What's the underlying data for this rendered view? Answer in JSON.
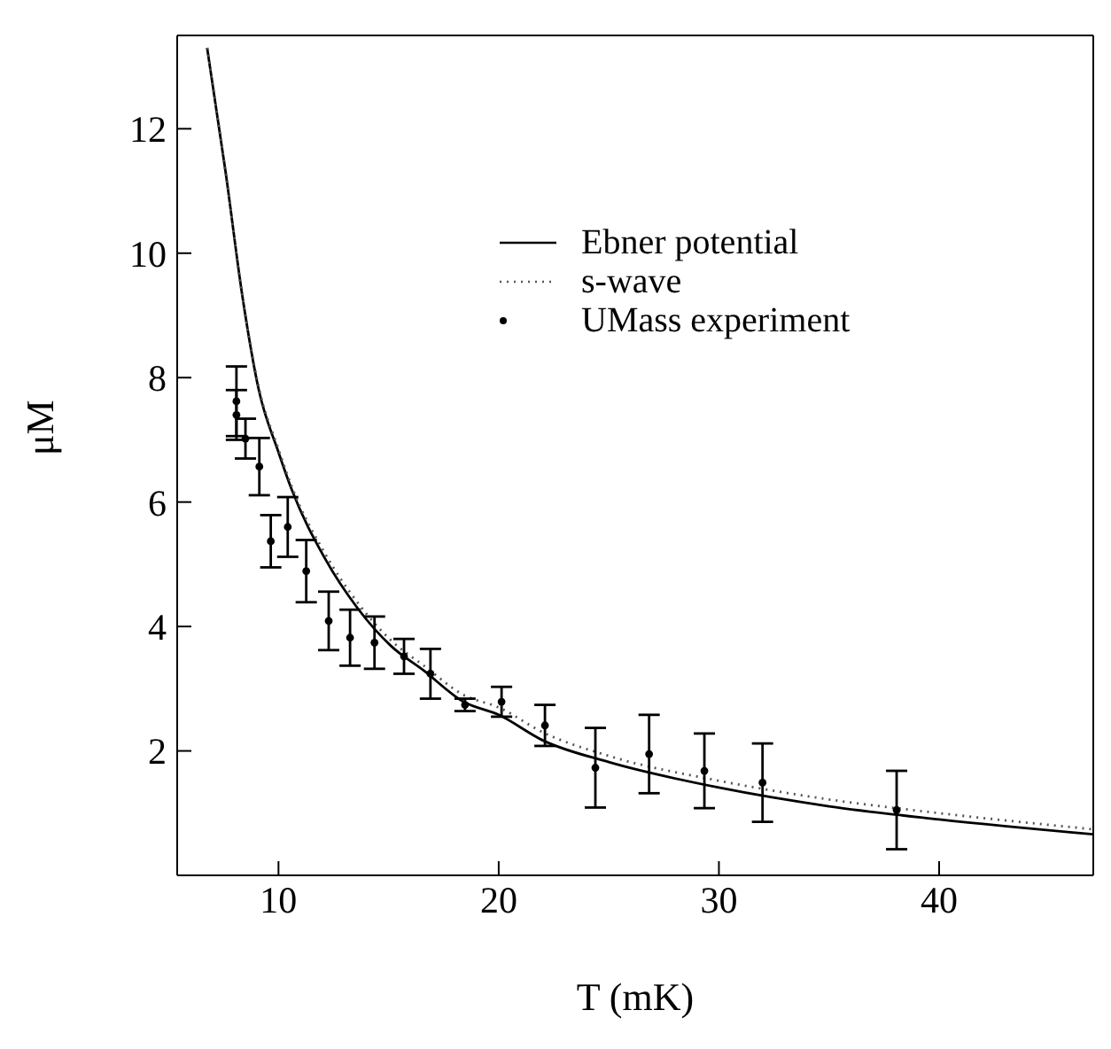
{
  "chart_data": {
    "type": "line",
    "xlabel": "T (mK)",
    "ylabel": "μM",
    "xlim": [
      5.4,
      47
    ],
    "ylim": [
      0,
      13.5
    ],
    "xticks": [
      10,
      20,
      30,
      40
    ],
    "yticks": [
      2,
      4,
      6,
      8,
      10,
      12
    ],
    "grid": false,
    "legend": "top right",
    "series": [
      {
        "name": "Ebner potential",
        "color": "#000000",
        "line_style": "solid",
        "marker": "none",
        "x": [
          6.76,
          7.6,
          8.36,
          9.1,
          10,
          10.6,
          12.1,
          13.6,
          15.1,
          16.6,
          18.4,
          20,
          22,
          25,
          30,
          35,
          40,
          47
        ],
        "values": [
          13.3,
          11.3,
          9.31,
          7.81,
          6.8,
          6.2,
          5.1,
          4.29,
          3.69,
          3.29,
          2.79,
          2.58,
          2.17,
          1.82,
          1.41,
          1.11,
          0.9,
          0.66
        ]
      },
      {
        "name": "s-wave",
        "color": "#555555",
        "line_style": "dotted",
        "marker": "none",
        "x": [
          6.76,
          7.6,
          8.36,
          9.1,
          10,
          10.6,
          12.1,
          13.6,
          15.1,
          16.6,
          18.4,
          20,
          22,
          25,
          30,
          35,
          40,
          47
        ],
        "values": [
          13.3,
          11.3,
          9.31,
          7.85,
          6.85,
          6.25,
          5.18,
          4.38,
          3.78,
          3.37,
          2.9,
          2.7,
          2.3,
          1.92,
          1.52,
          1.22,
          1.0,
          0.74
        ]
      },
      {
        "name": "UMass experiment",
        "type": "scatter",
        "color": "#000000",
        "marker": "circle",
        "x": [
          8.09,
          8.09,
          8.5,
          9.13,
          9.65,
          10.42,
          11.26,
          12.28,
          13.25,
          14.36,
          15.7,
          16.9,
          18.47,
          20.13,
          22.1,
          24.39,
          26.83,
          29.34,
          31.98,
          38.07
        ],
        "values": [
          7.62,
          7.4,
          7.02,
          6.57,
          5.37,
          5.6,
          4.89,
          4.09,
          3.82,
          3.74,
          3.52,
          3.24,
          2.74,
          2.79,
          2.41,
          1.73,
          1.95,
          1.68,
          1.49,
          1.05
        ],
        "errors": [
          0.56,
          0.4,
          0.32,
          0.46,
          0.42,
          0.48,
          0.5,
          0.47,
          0.45,
          0.42,
          0.28,
          0.4,
          0.1,
          0.24,
          0.33,
          0.64,
          0.63,
          0.6,
          0.63,
          0.63
        ]
      }
    ]
  }
}
